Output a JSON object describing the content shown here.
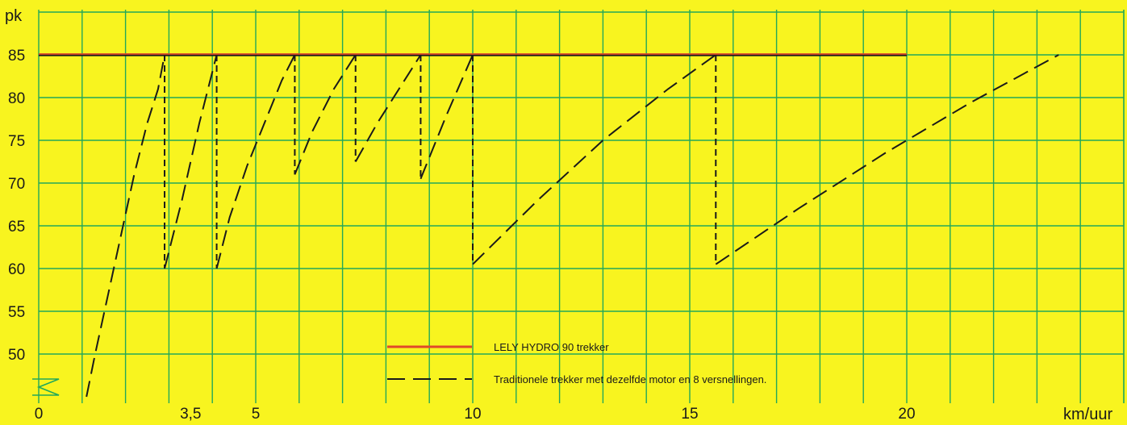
{
  "colors": {
    "background": "#f8f41f",
    "grid": "#22a85a",
    "hydro_line": "#e0482a",
    "traditional_line": "#1a1a1a",
    "text": "#1a1a1a"
  },
  "chart_data": {
    "type": "line",
    "title": "",
    "xlabel": "km/uur",
    "ylabel": "pk",
    "xlim": [
      0,
      25
    ],
    "ylim": [
      45,
      90
    ],
    "x_ticks": [
      "0",
      "3,5",
      "5",
      "10",
      "15",
      "20"
    ],
    "x_tick_values": [
      0,
      3.5,
      5,
      10,
      15,
      20
    ],
    "y_ticks": [
      "50",
      "55",
      "60",
      "65",
      "70",
      "75",
      "80",
      "85"
    ],
    "y_tick_values": [
      50,
      55,
      60,
      65,
      70,
      75,
      80,
      85
    ],
    "grid": true,
    "legend_position": "bottom-center",
    "series": [
      {
        "name": "LELY HYDRO 90 trekker",
        "style": "solid",
        "color": "#e0482a",
        "x": [
          0,
          20
        ],
        "y": [
          85,
          85
        ]
      },
      {
        "name": "Traditionele trekker met dezelfde motor en 8 versnellingen.",
        "style": "dashed",
        "color": "#1a1a1a",
        "gears": [
          {
            "x": [
              1.1,
              1.3,
              1.6,
              1.9,
              2.2,
              2.5,
              2.75,
              2.9
            ],
            "y": [
              45,
              50,
              57,
              64,
              71,
              77,
              81,
              85
            ]
          },
          {
            "x": [
              2.9,
              3.3,
              3.7,
              4.1
            ],
            "y": [
              60,
              68,
              77,
              85
            ]
          },
          {
            "x": [
              4.1,
              4.4,
              4.8,
              5.2,
              5.6,
              5.9
            ],
            "y": [
              60,
              66,
              72,
              77,
              82,
              85
            ]
          },
          {
            "x": [
              5.9,
              6.3,
              6.8,
              7.3
            ],
            "y": [
              71,
              76,
              81,
              85
            ]
          },
          {
            "x": [
              7.3,
              7.8,
              8.3,
              8.8
            ],
            "y": [
              72.5,
              77,
              81,
              85
            ]
          },
          {
            "x": [
              8.8,
              9.4,
              10.0
            ],
            "y": [
              70.5,
              78,
              85
            ]
          },
          {
            "x": [
              10.0,
              11.5,
              13.0,
              14.5,
              15.6
            ],
            "y": [
              60.5,
              68,
              75,
              81,
              85
            ]
          },
          {
            "x": [
              15.6,
              17.5,
              19.5,
              21.5,
              23.5
            ],
            "y": [
              60.5,
              67,
              73.5,
              79.5,
              85
            ]
          }
        ]
      }
    ]
  }
}
